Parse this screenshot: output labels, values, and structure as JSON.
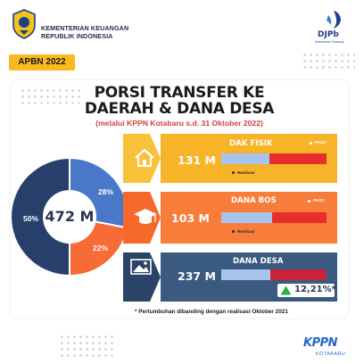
{
  "header": {
    "org_line1": "KEMENTERIAN KEUANGAN",
    "org_line2": "REPUBLIK INDONESIA",
    "partner_logo": "DJPb",
    "partner_tagline": "Indonesian Treasury",
    "badge": "APBN 2022"
  },
  "title": {
    "line1": "PORSI TRANSFER KE",
    "line2": "DAERAH & DANA DESA",
    "subtitle": "(melalui KPPN Kotabaru s.d. 31 Oktober 2022)"
  },
  "donut": {
    "total": "472 M",
    "segments": [
      {
        "label": "28%",
        "value": 28,
        "color": "#4a78c8",
        "icon": "house-icon"
      },
      {
        "label": "22%",
        "value": 22,
        "color": "#f76b36",
        "icon": "graduation-cap-icon"
      },
      {
        "label": "50%",
        "value": 50,
        "color": "#27406b",
        "icon": "landscape-icon"
      }
    ]
  },
  "rows": [
    {
      "name": "DAK FISIK",
      "amount": "131 M",
      "pagu_label": "PAGU",
      "realisasi_label": "Realisasi",
      "realisasi_fraction": 0.46,
      "icon": "house-icon",
      "band_color": "#f8b429",
      "chevron_color": "#f8c13a"
    },
    {
      "name": "DANA BOS",
      "amount": "103 M",
      "pagu_label": "PAGU",
      "realisasi_label": "Realisasi",
      "realisasi_fraction": 0.48,
      "icon": "graduation-cap-icon",
      "band_color": "#f97d3a",
      "chevron_color": "#f7692a"
    },
    {
      "name": "DANA DESA",
      "amount": "237 M",
      "realisasi_fraction": 0.47,
      "icon": "landscape-icon",
      "band_color": "#3b5a7f",
      "chevron_color": "#2a4468",
      "growth": "12,21%*",
      "growth_direction": "up"
    }
  ],
  "footnote": "* Pertumbuhan dibanding dengan realisasi Oktober 2021",
  "footer_logo": {
    "name": "KPPN",
    "sub": "KOTABARU"
  },
  "colors": {
    "accent_yellow": "#f9b91f",
    "red_bar": "#e62f2a",
    "blue_fill": "#a8c4ec",
    "growth_green": "#2fae4a"
  }
}
